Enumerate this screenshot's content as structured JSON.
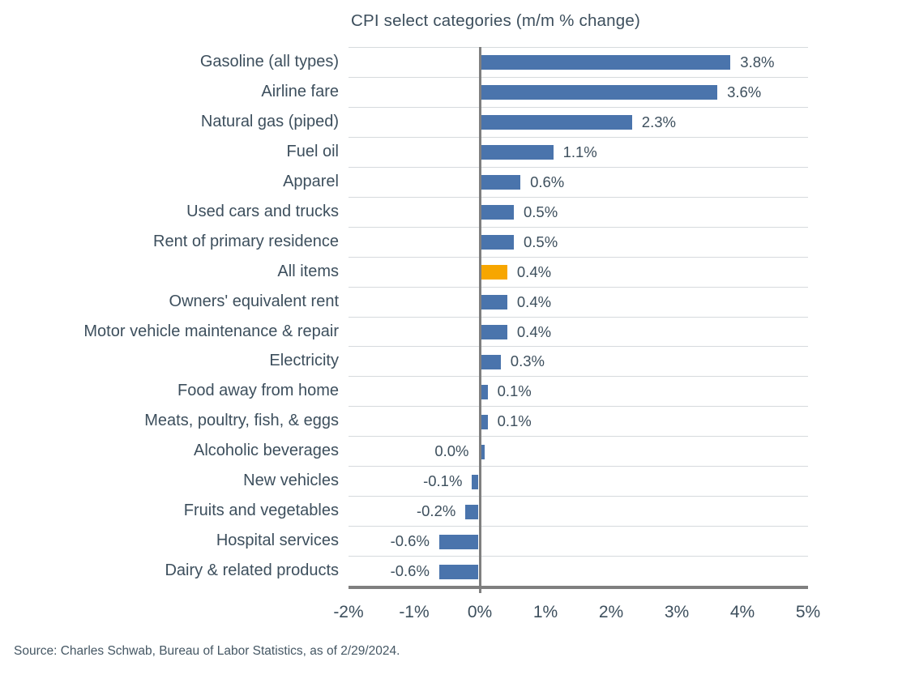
{
  "chart_data": {
    "type": "bar",
    "orientation": "horizontal",
    "title": "CPI select categories (m/m % change)",
    "categories": [
      "Gasoline (all types)",
      "Airline fare",
      "Natural gas (piped)",
      "Fuel oil",
      "Apparel",
      "Used cars and trucks",
      "Rent of primary residence",
      "All items",
      "Owners' equivalent rent",
      "Motor vehicle maintenance & repair",
      "Electricity",
      "Food away from home",
      "Meats, poultry, fish, & eggs",
      "Alcoholic beverages",
      "New vehicles",
      "Fruits and vegetables",
      "Hospital services",
      "Dairy & related products"
    ],
    "values": [
      3.8,
      3.6,
      2.3,
      1.1,
      0.6,
      0.5,
      0.5,
      0.4,
      0.4,
      0.4,
      0.3,
      0.1,
      0.1,
      0.0,
      -0.1,
      -0.2,
      -0.6,
      -0.6
    ],
    "value_labels": [
      "3.8%",
      "3.6%",
      "2.3%",
      "1.1%",
      "0.6%",
      "0.5%",
      "0.5%",
      "0.4%",
      "0.4%",
      "0.4%",
      "0.3%",
      "0.1%",
      "0.1%",
      "0.0%",
      "-0.1%",
      "-0.2%",
      "-0.6%",
      "-0.6%"
    ],
    "highlight_category": "All items",
    "highlight_index": 7,
    "xlim": [
      -2,
      5
    ],
    "x_ticks": [
      "-2%",
      "-1%",
      "0%",
      "1%",
      "2%",
      "3%",
      "4%",
      "5%"
    ],
    "grid": "horizontal row separator lines, zero axis emphasized",
    "legend": "none",
    "colors": {
      "bar": "#4a74ac",
      "highlight": "#f7a600",
      "text": "#3d4f5d",
      "gridline": "#d6dadd",
      "axis": "#7f7f7f"
    }
  },
  "source_note": "Source: Charles Schwab, Bureau of Labor Statistics, as of 2/29/2024."
}
